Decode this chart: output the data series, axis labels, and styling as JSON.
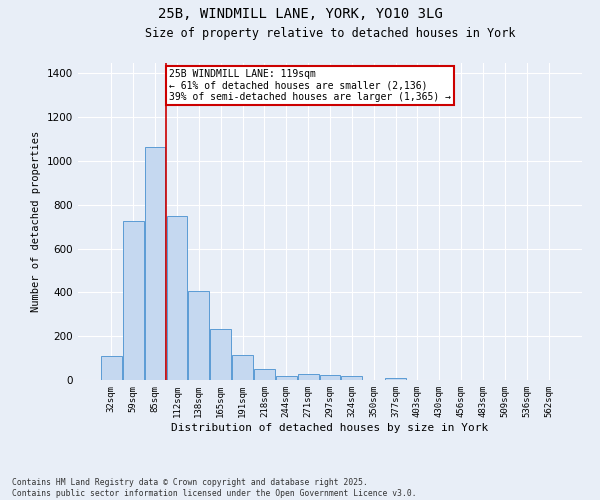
{
  "title": "25B, WINDMILL LANE, YORK, YO10 3LG",
  "subtitle": "Size of property relative to detached houses in York",
  "xlabel": "Distribution of detached houses by size in York",
  "ylabel": "Number of detached properties",
  "bar_color": "#c5d8f0",
  "bar_edge_color": "#5b9bd5",
  "categories": [
    "32sqm",
    "59sqm",
    "85sqm",
    "112sqm",
    "138sqm",
    "165sqm",
    "191sqm",
    "218sqm",
    "244sqm",
    "271sqm",
    "297sqm",
    "324sqm",
    "350sqm",
    "377sqm",
    "403sqm",
    "430sqm",
    "456sqm",
    "483sqm",
    "509sqm",
    "536sqm",
    "562sqm"
  ],
  "values": [
    110,
    725,
    1065,
    750,
    405,
    235,
    115,
    50,
    20,
    28,
    22,
    18,
    0,
    10,
    0,
    0,
    0,
    0,
    0,
    0,
    0
  ],
  "ylim": [
    0,
    1450
  ],
  "yticks": [
    0,
    200,
    400,
    600,
    800,
    1000,
    1200,
    1400
  ],
  "property_line_bin": 3,
  "annotation_text": "25B WINDMILL LANE: 119sqm\n← 61% of detached houses are smaller (2,136)\n39% of semi-detached houses are larger (1,365) →",
  "annotation_box_color": "#ffffff",
  "annotation_box_edgecolor": "#cc0000",
  "vline_color": "#cc0000",
  "background_color": "#e8eef7",
  "footer_text": "Contains HM Land Registry data © Crown copyright and database right 2025.\nContains public sector information licensed under the Open Government Licence v3.0.",
  "grid_color": "#ffffff",
  "title_fontsize": 10,
  "subtitle_fontsize": 8.5,
  "ylabel_fontsize": 7.5,
  "xlabel_fontsize": 8,
  "ytick_fontsize": 7.5,
  "xtick_fontsize": 6.5,
  "annotation_fontsize": 7,
  "footer_fontsize": 5.8
}
